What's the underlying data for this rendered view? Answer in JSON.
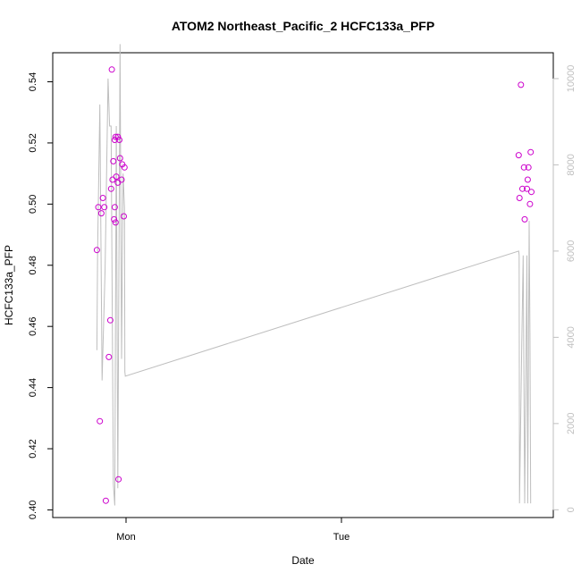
{
  "chart_data": {
    "type": "scatter",
    "title": "ATOM2 Northeast_Pacific_2 HCFC133a_PFP",
    "xlabel": "Date",
    "ylabel": "HCFC133a_PFP",
    "x_ticks": [
      "Mon",
      "Tue"
    ],
    "ylim": [
      0.3975,
      0.5495
    ],
    "y_ticks": [
      "0.40",
      "0.42",
      "0.44",
      "0.46",
      "0.48",
      "0.50",
      "0.52",
      "0.54"
    ],
    "y2lim": [
      -180,
      10600
    ],
    "y2_ticks": [
      "0",
      "2000",
      "4000",
      "6000",
      "8000",
      "10000"
    ],
    "point_color": "#cc00cc",
    "line_color": "#bebebe",
    "points": [
      {
        "x": "Sun 20:45",
        "y": 0.485
      },
      {
        "x": "Sun 20:55",
        "y": 0.499
      },
      {
        "x": "Sun 21:05",
        "y": 0.429
      },
      {
        "x": "Sun 21:15",
        "y": 0.497
      },
      {
        "x": "Sun 21:25",
        "y": 0.502
      },
      {
        "x": "Sun 21:35",
        "y": 0.499
      },
      {
        "x": "Sun 21:45",
        "y": 0.403
      },
      {
        "x": "Sun 22:05",
        "y": 0.45
      },
      {
        "x": "Sun 22:15",
        "y": 0.462
      },
      {
        "x": "Sun 22:20",
        "y": 0.505
      },
      {
        "x": "Sun 22:25",
        "y": 0.544
      },
      {
        "x": "Sun 22:30",
        "y": 0.508
      },
      {
        "x": "Sun 22:35",
        "y": 0.514
      },
      {
        "x": "Sun 22:40",
        "y": 0.495
      },
      {
        "x": "Sun 22:45",
        "y": 0.499
      },
      {
        "x": "Sun 22:45",
        "y": 0.521
      },
      {
        "x": "Sun 22:50",
        "y": 0.494
      },
      {
        "x": "Sun 22:50",
        "y": 0.522
      },
      {
        "x": "Sun 22:55",
        "y": 0.509
      },
      {
        "x": "Sun 23:05",
        "y": 0.522
      },
      {
        "x": "Sun 23:05",
        "y": 0.507
      },
      {
        "x": "Sun 23:10",
        "y": 0.41
      },
      {
        "x": "Sun 23:15",
        "y": 0.521
      },
      {
        "x": "Sun 23:20",
        "y": 0.515
      },
      {
        "x": "Sun 23:30",
        "y": 0.508
      },
      {
        "x": "Sun 23:35",
        "y": 0.513
      },
      {
        "x": "Sun 23:45",
        "y": 0.496
      },
      {
        "x": "Sun 23:50",
        "y": 0.512
      },
      {
        "x": "Tue 19:45",
        "y": 0.516
      },
      {
        "x": "Tue 19:50",
        "y": 0.502
      },
      {
        "x": "Tue 20:00",
        "y": 0.539
      },
      {
        "x": "Tue 20:10",
        "y": 0.505
      },
      {
        "x": "Tue 20:20",
        "y": 0.512
      },
      {
        "x": "Tue 20:25",
        "y": 0.495
      },
      {
        "x": "Tue 20:40",
        "y": 0.505
      },
      {
        "x": "Tue 20:45",
        "y": 0.508
      },
      {
        "x": "Tue 20:50",
        "y": 0.512
      },
      {
        "x": "Tue 21:00",
        "y": 0.5
      },
      {
        "x": "Tue 21:05",
        "y": 0.517
      },
      {
        "x": "Tue 21:10",
        "y": 0.504
      }
    ],
    "line_series": [
      {
        "x": "Sun 20:45",
        "y": 3700
      },
      {
        "x": "Sun 20:50",
        "y": 6000
      },
      {
        "x": "Sun 21:05",
        "y": 9400
      },
      {
        "x": "Sun 21:20",
        "y": 3000
      },
      {
        "x": "Sun 21:40",
        "y": 5600
      },
      {
        "x": "Sun 22:00",
        "y": 10000
      },
      {
        "x": "Sun 22:10",
        "y": 8900
      },
      {
        "x": "Sun 22:20",
        "y": 8900
      },
      {
        "x": "Sun 22:35",
        "y": 600
      },
      {
        "x": "Sun 22:45",
        "y": 100
      },
      {
        "x": "Sun 22:55",
        "y": 8900
      },
      {
        "x": "Sun 23:05",
        "y": 500
      },
      {
        "x": "Sun 23:20",
        "y": 10800
      },
      {
        "x": "Sun 23:30",
        "y": 3500
      },
      {
        "x": "Sun 23:40",
        "y": 7800
      },
      {
        "x": "Sun 23:50",
        "y": 7000
      },
      {
        "x": "Sun 23:52",
        "y": 3200
      },
      {
        "x": "Sun 23:55",
        "y": 3100
      },
      {
        "x": "Tue 19:45",
        "y": 6000
      },
      {
        "x": "Tue 19:48",
        "y": 5900
      },
      {
        "x": "Tue 19:50",
        "y": 150
      },
      {
        "x": "Tue 20:05",
        "y": 3800
      },
      {
        "x": "Tue 20:15",
        "y": 5900
      },
      {
        "x": "Tue 20:25",
        "y": 150
      },
      {
        "x": "Tue 20:40",
        "y": 5900
      },
      {
        "x": "Tue 20:45",
        "y": 150
      },
      {
        "x": "Tue 20:55",
        "y": 6700
      },
      {
        "x": "Tue 21:00",
        "y": 4100
      },
      {
        "x": "Tue 21:05",
        "y": 150
      }
    ]
  }
}
